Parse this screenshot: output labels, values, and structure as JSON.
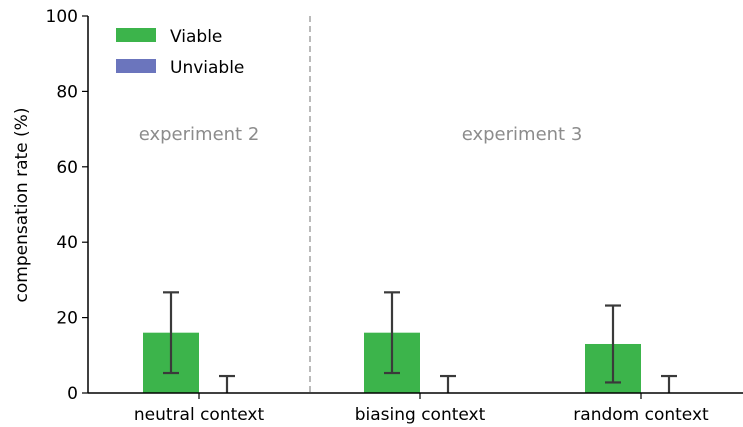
{
  "chart_data": {
    "type": "bar",
    "categories": [
      "neutral context",
      "biasing context",
      "random context"
    ],
    "series": [
      {
        "name": "Viable",
        "color": "#3cb44b",
        "values": [
          16.0,
          16.0,
          13.0
        ],
        "error_low": [
          5.3,
          5.3,
          2.8
        ],
        "error_high": [
          26.7,
          26.7,
          23.2
        ]
      },
      {
        "name": "Unviable",
        "color": "#6b75bd",
        "values": [
          0,
          0,
          0
        ],
        "error_low": [
          0,
          0,
          0
        ],
        "error_high": [
          4.5,
          4.5,
          4.5
        ]
      }
    ],
    "title": "",
    "xlabel": "",
    "ylabel": "compensation rate (%)",
    "ylim": [
      0,
      100
    ],
    "yticks": [
      "0",
      "20",
      "40",
      "60",
      "80",
      "100"
    ],
    "annotations": [
      "experiment 2",
      "experiment 3"
    ],
    "separator_between": [
      "neutral context",
      "biasing context"
    ],
    "grid": false,
    "legend_position": "top-left"
  }
}
